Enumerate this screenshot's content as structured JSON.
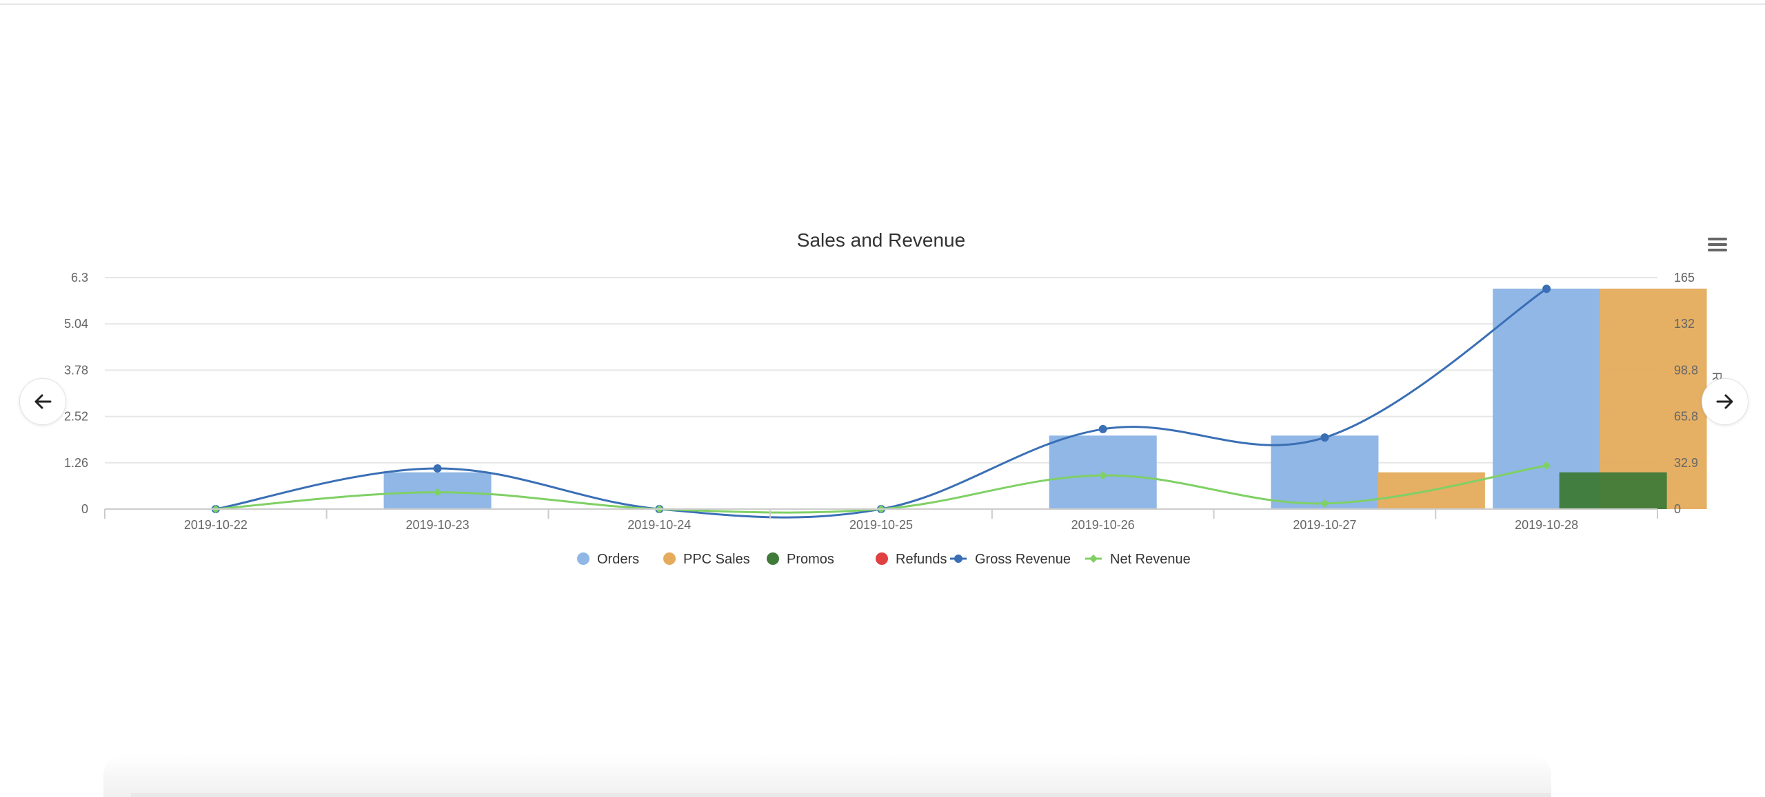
{
  "chart_data": {
    "type": "bar",
    "title": "Sales and Revenue",
    "categories": [
      "2019-10-22",
      "2019-10-23",
      "2019-10-24",
      "2019-10-25",
      "2019-10-26",
      "2019-10-27",
      "2019-10-28"
    ],
    "y_left": {
      "min": 0,
      "max": 6.3,
      "ticks": [
        "0",
        "1.26",
        "2.52",
        "3.78",
        "5.04",
        "6.3"
      ]
    },
    "y_right": {
      "min": 0,
      "max": 165,
      "ticks": [
        "0",
        "32.9",
        "65.8",
        "98.8",
        "132",
        "165"
      ],
      "label": "Re"
    },
    "series": [
      {
        "name": "Orders",
        "type": "bar",
        "color": "#90b7e6",
        "values": [
          0,
          1,
          0,
          0,
          2,
          2,
          6
        ]
      },
      {
        "name": "PPC Sales",
        "type": "bar",
        "color": "#e4ab5c",
        "values": [
          0,
          0,
          0,
          0,
          0,
          1,
          6
        ]
      },
      {
        "name": "Promos",
        "type": "bar",
        "color": "#3f7a38",
        "values": [
          0,
          0,
          0,
          0,
          0,
          0,
          1
        ]
      },
      {
        "name": "Refunds",
        "type": "bar",
        "color": "#e04040",
        "values": [
          0,
          0,
          0,
          0,
          0,
          0,
          0
        ]
      },
      {
        "name": "Gross Revenue",
        "type": "line",
        "color": "#3a6fb5",
        "axis": "right",
        "values": [
          0,
          29,
          0,
          0,
          57,
          51,
          157
        ]
      },
      {
        "name": "Net Revenue",
        "type": "line",
        "color": "#7fd065",
        "axis": "right",
        "values": [
          0,
          12,
          0,
          0,
          24,
          4,
          31
        ]
      }
    ],
    "legend_position": "bottom",
    "grid": true
  },
  "icons": {
    "prev": "arrow-left-icon",
    "next": "arrow-right-icon",
    "menu": "hamburger-menu-icon"
  }
}
